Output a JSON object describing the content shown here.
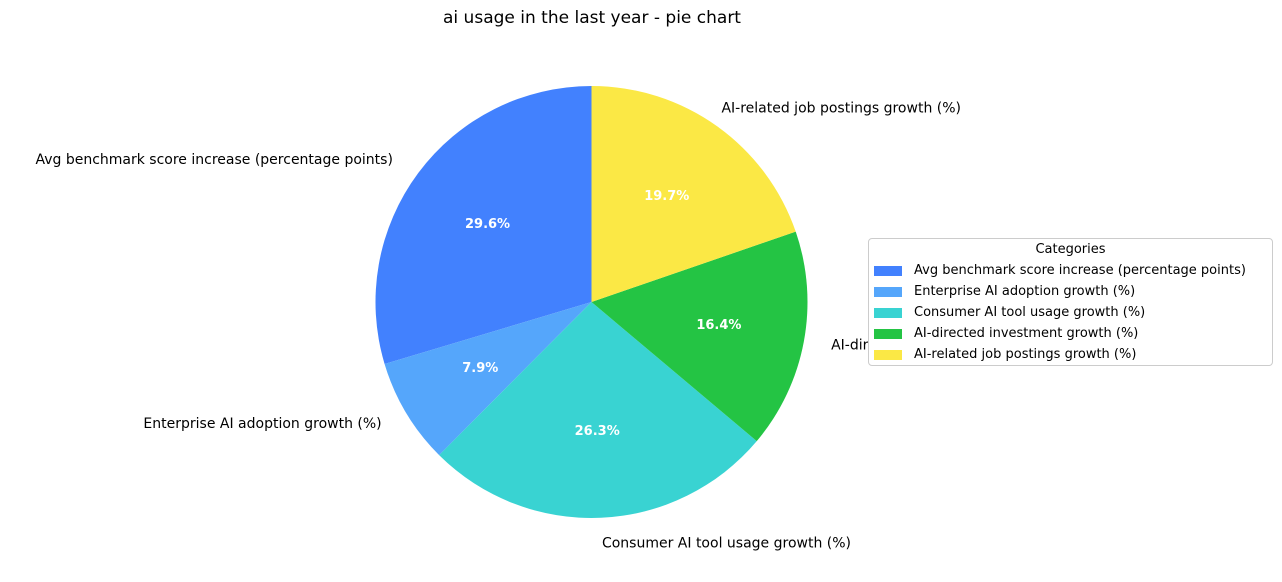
{
  "chart_data": {
    "type": "pie",
    "title": "ai usage in the last year - pie chart",
    "categories": [
      "Avg benchmark score increase (percentage points)",
      "Enterprise AI adoption growth (%)",
      "Consumer AI tool usage growth (%)",
      "AI-directed investment growth (%)",
      "AI-related job postings growth (%)"
    ],
    "values": [
      29.6,
      7.9,
      26.3,
      16.4,
      19.7
    ],
    "percent_labels": [
      "29.6%",
      "7.9%",
      "26.3%",
      "16.4%",
      "19.7%"
    ],
    "colors": [
      "#4281fe",
      "#55a6fb",
      "#39d3d2",
      "#24c444",
      "#fbe845"
    ],
    "start_angle_deg": 90,
    "direction": "counterclockwise",
    "legend": {
      "title": "Categories",
      "placement": "center-right"
    }
  }
}
